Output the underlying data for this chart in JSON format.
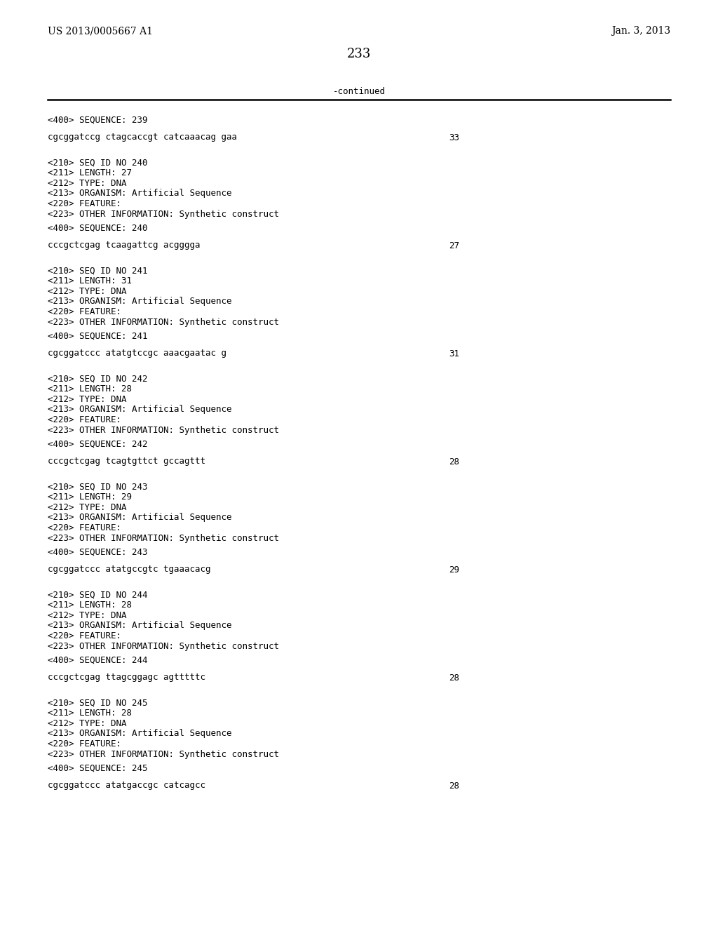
{
  "page_number": "233",
  "top_left": "US 2013/0005667 A1",
  "top_right": "Jan. 3, 2013",
  "continued_label": "-continued",
  "background_color": "#ffffff",
  "text_color": "#000000",
  "sections": [
    {
      "seq_400": "<400> SEQUENCE: 239",
      "sequence": "cgcggatccg ctagcaccgt catcaaacag gaa",
      "seq_number": "33"
    },
    {
      "seq_210": "<210> SEQ ID NO 240",
      "seq_211": "<211> LENGTH: 27",
      "seq_212": "<212> TYPE: DNA",
      "seq_213": "<213> ORGANISM: Artificial Sequence",
      "seq_220": "<220> FEATURE:",
      "seq_223": "<223> OTHER INFORMATION: Synthetic construct",
      "seq_400": "<400> SEQUENCE: 240",
      "sequence": "cccgctcgag tcaagattcg acgggga",
      "seq_number": "27"
    },
    {
      "seq_210": "<210> SEQ ID NO 241",
      "seq_211": "<211> LENGTH: 31",
      "seq_212": "<212> TYPE: DNA",
      "seq_213": "<213> ORGANISM: Artificial Sequence",
      "seq_220": "<220> FEATURE:",
      "seq_223": "<223> OTHER INFORMATION: Synthetic construct",
      "seq_400": "<400> SEQUENCE: 241",
      "sequence": "cgcggatccc atatgtccgc aaacgaatac g",
      "seq_number": "31"
    },
    {
      "seq_210": "<210> SEQ ID NO 242",
      "seq_211": "<211> LENGTH: 28",
      "seq_212": "<212> TYPE: DNA",
      "seq_213": "<213> ORGANISM: Artificial Sequence",
      "seq_220": "<220> FEATURE:",
      "seq_223": "<223> OTHER INFORMATION: Synthetic construct",
      "seq_400": "<400> SEQUENCE: 242",
      "sequence": "cccgctcgag tcagtgttct gccagttt",
      "seq_number": "28"
    },
    {
      "seq_210": "<210> SEQ ID NO 243",
      "seq_211": "<211> LENGTH: 29",
      "seq_212": "<212> TYPE: DNA",
      "seq_213": "<213> ORGANISM: Artificial Sequence",
      "seq_220": "<220> FEATURE:",
      "seq_223": "<223> OTHER INFORMATION: Synthetic construct",
      "seq_400": "<400> SEQUENCE: 243",
      "sequence": "cgcggatccc atatgccgtc tgaaacacg",
      "seq_number": "29"
    },
    {
      "seq_210": "<210> SEQ ID NO 244",
      "seq_211": "<211> LENGTH: 28",
      "seq_212": "<212> TYPE: DNA",
      "seq_213": "<213> ORGANISM: Artificial Sequence",
      "seq_220": "<220> FEATURE:",
      "seq_223": "<223> OTHER INFORMATION: Synthetic construct",
      "seq_400": "<400> SEQUENCE: 244",
      "sequence": "cccgctcgag ttagcggagc agtttttc",
      "seq_number": "28"
    },
    {
      "seq_210": "<210> SEQ ID NO 245",
      "seq_211": "<211> LENGTH: 28",
      "seq_212": "<212> TYPE: DNA",
      "seq_213": "<213> ORGANISM: Artificial Sequence",
      "seq_220": "<220> FEATURE:",
      "seq_223": "<223> OTHER INFORMATION: Synthetic construct",
      "seq_400": "<400> SEQUENCE: 245",
      "sequence": "cgcggatccc atatgaccgc catcagcc",
      "seq_number": "28"
    }
  ]
}
